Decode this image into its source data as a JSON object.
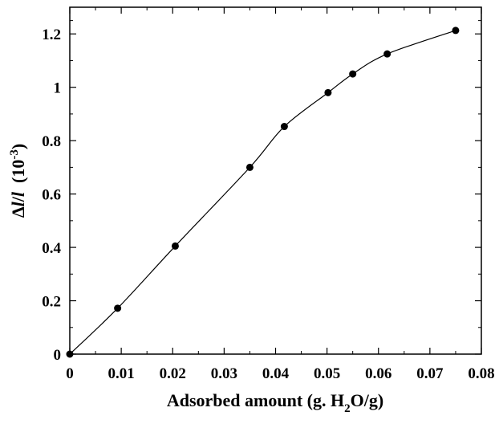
{
  "chart_data": {
    "type": "line",
    "xlabel": {
      "main": "Adsorbed amount (g. H",
      "sub": "2",
      "tail": "O/g)"
    },
    "ylabel": {
      "delta": "Δ",
      "l1": "l",
      "slash": "/",
      "l2": "l",
      "gap": "  (10",
      "sup": "-3",
      "close": ")"
    },
    "xlim": [
      0,
      0.08
    ],
    "ylim": [
      0,
      1.3
    ],
    "xticks": [
      {
        "value": 0,
        "label": "0"
      },
      {
        "value": 0.01,
        "label": "0.01"
      },
      {
        "value": 0.02,
        "label": "0.02"
      },
      {
        "value": 0.03,
        "label": "0.03"
      },
      {
        "value": 0.04,
        "label": "0.04"
      },
      {
        "value": 0.05,
        "label": "0.05"
      },
      {
        "value": 0.06,
        "label": "0.06"
      },
      {
        "value": 0.07,
        "label": "0.07"
      },
      {
        "value": 0.08,
        "label": "0.08"
      }
    ],
    "yticks": [
      {
        "value": 0,
        "label": "0"
      },
      {
        "value": 0.2,
        "label": "0.2"
      },
      {
        "value": 0.4,
        "label": "0.4"
      },
      {
        "value": 0.6,
        "label": "0.6"
      },
      {
        "value": 0.8,
        "label": "0.8"
      },
      {
        "value": 1.0,
        "label": "1"
      },
      {
        "value": 1.2,
        "label": "1.2"
      }
    ],
    "grid": false,
    "legend": "none",
    "series": [
      {
        "marker": "filled-circle",
        "line": "smooth",
        "color": "#000000",
        "x": [
          0.0,
          0.0093,
          0.0205,
          0.035,
          0.0417,
          0.0502,
          0.055,
          0.0617,
          0.075
        ],
        "y": [
          0.0,
          0.172,
          0.405,
          0.7,
          0.853,
          0.98,
          1.05,
          1.125,
          1.213
        ]
      }
    ]
  }
}
